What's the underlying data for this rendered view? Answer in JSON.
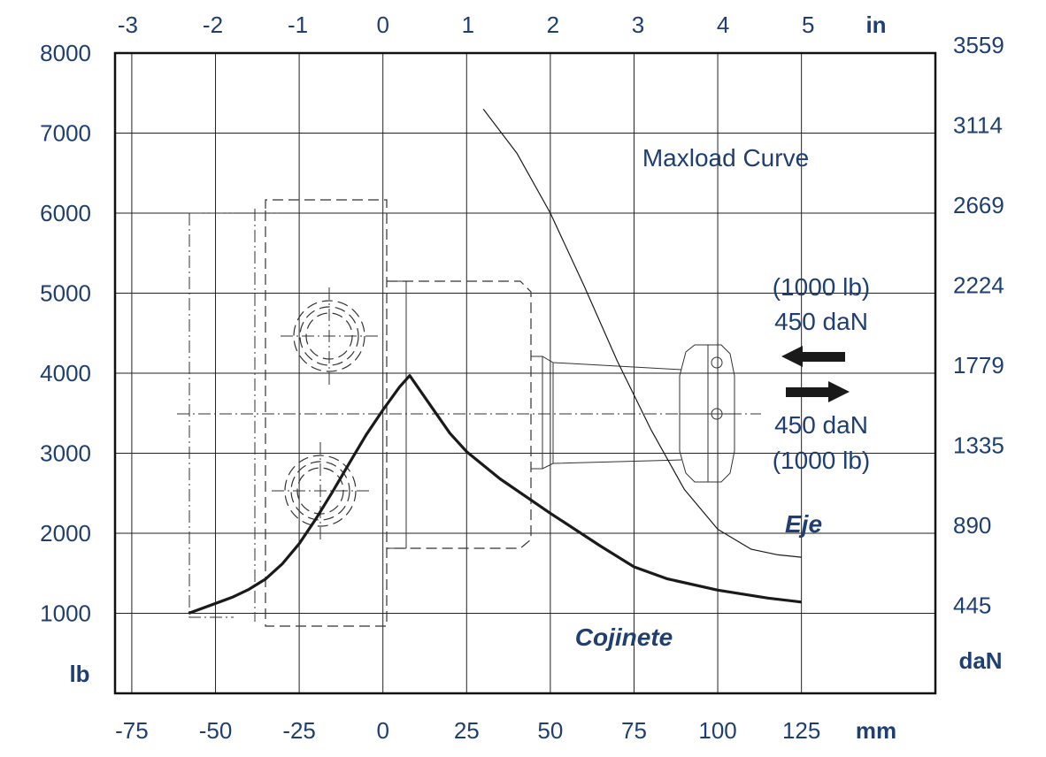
{
  "chart_data": {
    "type": "line",
    "x_unit_bottom": "mm",
    "x_unit_top": "in",
    "y_unit_left": "lb",
    "y_unit_right": "daN",
    "xlim_mm": [
      -80,
      165
    ],
    "ylim_lb": [
      0,
      8000
    ],
    "x_ticks_mm": [
      -75,
      -50,
      -25,
      0,
      25,
      50,
      75,
      100,
      125
    ],
    "x_ticks_in": [
      -3,
      -2,
      -1,
      0,
      1,
      2,
      3,
      4,
      5
    ],
    "y_ticks_lb": [
      1000,
      2000,
      3000,
      4000,
      5000,
      6000,
      7000,
      8000
    ],
    "y_ticks_dan": [
      445,
      890,
      1335,
      1779,
      2224,
      2669,
      3114,
      3559
    ],
    "grid": true,
    "series": [
      {
        "name": "Cojinete",
        "x": [
          -58,
          -45,
          -40,
          -35,
          -30,
          -25,
          -20,
          -15,
          -10,
          -5,
          0,
          5,
          8,
          12,
          20,
          25,
          35,
          50,
          65,
          75,
          85,
          100,
          115,
          125
        ],
        "y": [
          1000,
          1200,
          1300,
          1430,
          1620,
          1870,
          2180,
          2520,
          2880,
          3230,
          3540,
          3830,
          3970,
          3730,
          3250,
          3020,
          2680,
          2250,
          1840,
          1580,
          1430,
          1290,
          1190,
          1140
        ]
      },
      {
        "name": "Eje",
        "x": [
          30,
          40,
          50,
          60,
          70,
          80,
          90,
          100,
          110,
          118,
          125
        ],
        "y": [
          7300,
          6750,
          6000,
          5100,
          4150,
          3300,
          2550,
          2050,
          1800,
          1730,
          1700
        ]
      }
    ],
    "annotations": {
      "maxload": "Maxload Curve",
      "force_top_lb": "(1000 lb)",
      "force_top_dan": "450 daN",
      "force_bottom_dan": "450 daN",
      "force_bottom_lb": "(1000 lb)",
      "eje_label": "Eje",
      "cojinete_label": "Cojinete"
    },
    "colors": {
      "text": "#1f3f73",
      "curve": "#1a1a1a"
    }
  }
}
